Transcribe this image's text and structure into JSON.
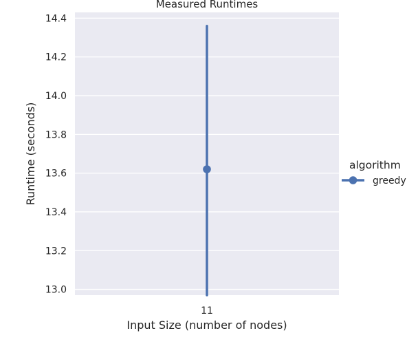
{
  "chart_data": {
    "type": "pointplot",
    "title": "Measured Runtimes",
    "xlabel": "Input Size (number of nodes)",
    "ylabel": "Runtime (seconds)",
    "categories": [
      "11"
    ],
    "ylim": [
      12.97,
      14.43
    ],
    "yticks": [
      13.0,
      13.2,
      13.4,
      13.6,
      13.8,
      14.0,
      14.2,
      14.4
    ],
    "grid": true,
    "legend": {
      "title": "algorithm",
      "placement": "right"
    },
    "series": [
      {
        "name": "greedy",
        "color": "#4c72b0",
        "points": [
          {
            "x": "11",
            "y": 13.62,
            "ci_low": 12.97,
            "ci_high": 14.36
          }
        ]
      }
    ]
  },
  "colors": {
    "plot_background": "#eaeaf2",
    "grid": "#ffffff",
    "series": "#4c72b0"
  }
}
